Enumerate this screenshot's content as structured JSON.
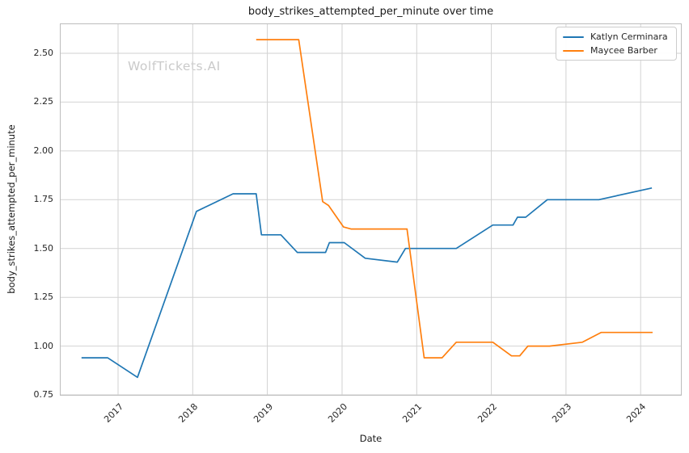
{
  "watermark": "WolfTickets.AI",
  "chart_data": {
    "type": "line",
    "title": "body_strikes_attempted_per_minute over time",
    "xlabel": "Date",
    "ylabel": "body_strikes_attempted_per_minute",
    "x_ticks": [
      "2017",
      "2018",
      "2019",
      "2020",
      "2021",
      "2022",
      "2023",
      "2024"
    ],
    "y_ticks": [
      "0.75",
      "1.00",
      "1.25",
      "1.50",
      "1.75",
      "2.00",
      "2.25",
      "2.50"
    ],
    "xlim": [
      2016.22,
      2024.55
    ],
    "ylim": [
      0.746,
      2.653
    ],
    "grid": true,
    "legend_position": "upper right",
    "x_unit": "decimal_year",
    "series": [
      {
        "name": "Katlyn Cerminara",
        "color": "#1f77b4",
        "points": [
          [
            2016.51,
            0.94
          ],
          [
            2016.86,
            0.94
          ],
          [
            2017.26,
            0.84
          ],
          [
            2018.05,
            1.69
          ],
          [
            2018.54,
            1.78
          ],
          [
            2018.85,
            1.78
          ],
          [
            2018.92,
            1.57
          ],
          [
            2019.18,
            1.57
          ],
          [
            2019.4,
            1.48
          ],
          [
            2019.78,
            1.48
          ],
          [
            2019.83,
            1.53
          ],
          [
            2020.03,
            1.53
          ],
          [
            2020.31,
            1.45
          ],
          [
            2020.74,
            1.43
          ],
          [
            2020.85,
            1.5
          ],
          [
            2021.53,
            1.5
          ],
          [
            2022.02,
            1.62
          ],
          [
            2022.29,
            1.62
          ],
          [
            2022.35,
            1.66
          ],
          [
            2022.46,
            1.66
          ],
          [
            2022.75,
            1.75
          ],
          [
            2023.44,
            1.75
          ],
          [
            2024.15,
            1.81
          ]
        ]
      },
      {
        "name": "Maycee Barber",
        "color": "#ff7f0e",
        "points": [
          [
            2018.85,
            2.57
          ],
          [
            2019.42,
            2.57
          ],
          [
            2019.74,
            1.74
          ],
          [
            2019.82,
            1.72
          ],
          [
            2020.02,
            1.61
          ],
          [
            2020.12,
            1.6
          ],
          [
            2020.87,
            1.6
          ],
          [
            2021.1,
            0.94
          ],
          [
            2021.34,
            0.94
          ],
          [
            2021.53,
            1.02
          ],
          [
            2022.02,
            1.02
          ],
          [
            2022.27,
            0.95
          ],
          [
            2022.38,
            0.95
          ],
          [
            2022.49,
            1.0
          ],
          [
            2022.78,
            1.0
          ],
          [
            2023.22,
            1.02
          ],
          [
            2023.47,
            1.07
          ],
          [
            2024.16,
            1.07
          ]
        ]
      }
    ]
  }
}
